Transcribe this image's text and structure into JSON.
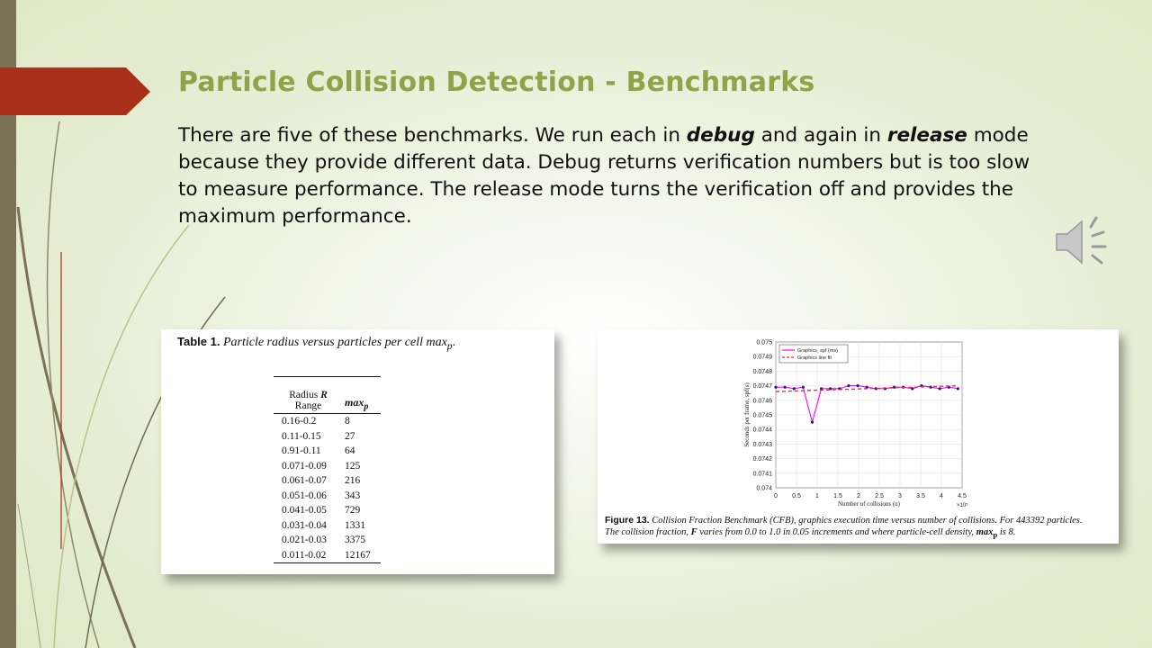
{
  "slide": {
    "title": "Particle Collision Detection - Benchmarks",
    "body": {
      "p1": "There are five of these benchmarks. We run each in ",
      "b1": "debug",
      "p2": " and again in ",
      "b2": "release",
      "p3": " mode because they provide different data. Debug returns verification numbers but is too slow to measure performance. The release mode turns the verification off and provides the maximum performance."
    },
    "speaker_icon": "speaker-icon",
    "colors": {
      "title": "#8fa349",
      "arrow": "#a8301a",
      "left_bar": "#7a7257"
    }
  },
  "table_figure": {
    "caption_label": "Table 1.",
    "caption_text": "Particle radius versus particles per cell max",
    "caption_sub": "p",
    "caption_end": ".",
    "header": {
      "col1_line1": "Radius ",
      "col1_r": "R",
      "col1_line2": "Range",
      "col2": "max",
      "col2_sub": "p"
    },
    "rows": [
      [
        "0.16-0.2",
        "8"
      ],
      [
        "0.11-0.15",
        "27"
      ],
      [
        "0.91-0.11",
        "64"
      ],
      [
        "0.071-0.09",
        "125"
      ],
      [
        "0.061-0.07",
        "216"
      ],
      [
        "0.051-0.06",
        "343"
      ],
      [
        "0.041-0.05",
        "729"
      ],
      [
        "0.031-0.04",
        "1331"
      ],
      [
        "0.021-0.03",
        "3375"
      ],
      [
        "0.011-0.02",
        "12167"
      ]
    ]
  },
  "chart_figure": {
    "caption_label": "Figure 13.",
    "caption_text1": "Collision Fraction Benchmark (CFB), graphics execution time versus number of collisions.  For 443392 particles.",
    "caption_text2": "The collision fraction, ",
    "caption_f": "F",
    "caption_text3": " varies from 0.0 to 1.0 in 0.05 increments and where particle-cell density, ",
    "caption_max": "max",
    "caption_sub": "p",
    "caption_text4": " is 8."
  },
  "chart_data": {
    "type": "line",
    "xlabel": "Number of collisions (n)",
    "ylabel": "Seconds per frame, spf(s)",
    "x_exponent_label": "×10⁵",
    "xlim": [
      0,
      4.5
    ],
    "ylim": [
      0.074,
      0.075
    ],
    "x_ticks": [
      "0",
      "0.5",
      "1",
      "1.5",
      "2",
      "2.5",
      "3",
      "3.5",
      "4",
      "4.5"
    ],
    "y_ticks": [
      "0.074",
      "0.0741",
      "0.0742",
      "0.0743",
      "0.0744",
      "0.0745",
      "0.0746",
      "0.0747",
      "0.0748",
      "0.0749",
      "0.075"
    ],
    "grid": true,
    "legend_placement": "top-left",
    "series": [
      {
        "name": "Graphics, spf (ms)",
        "color": "#ff00ff",
        "marker_color": "#2a1a8c",
        "x": [
          0,
          0.22,
          0.44,
          0.66,
          0.88,
          1.1,
          1.32,
          1.54,
          1.76,
          1.98,
          2.2,
          2.42,
          2.64,
          2.86,
          3.08,
          3.3,
          3.52,
          3.74,
          3.96,
          4.18,
          4.4
        ],
        "y": [
          0.07469,
          0.07469,
          0.07468,
          0.07469,
          0.07445,
          0.07468,
          0.07468,
          0.07468,
          0.0747,
          0.0747,
          0.07469,
          0.07468,
          0.07468,
          0.07469,
          0.07469,
          0.07468,
          0.0747,
          0.07469,
          0.07468,
          0.07469,
          0.07468
        ]
      },
      {
        "name": "Graphics line fit",
        "color": "#e03030",
        "dashed": true,
        "x": [
          0,
          4.4
        ],
        "y": [
          0.07466,
          0.0747
        ]
      }
    ]
  }
}
